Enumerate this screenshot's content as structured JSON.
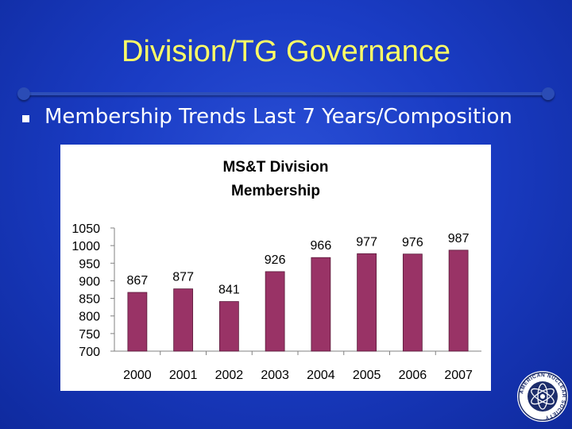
{
  "slide": {
    "title": "Division/TG Governance",
    "bullet": "Membership Trends Last 7 Years/Composition"
  },
  "colors": {
    "background": "#1a3cc4",
    "title": "#ffff66",
    "bar": "#993366",
    "bar_stroke": "#5a1a3a"
  },
  "logo": {
    "icon": "american-nuclear-society-seal",
    "text": "AMERICAN NUCLEAR SOCIETY"
  },
  "chart_data": {
    "type": "bar",
    "title_lines": [
      "MS&T Division",
      "Membership"
    ],
    "categories": [
      "2000",
      "2001",
      "2002",
      "2003",
      "2004",
      "2005",
      "2006",
      "2007"
    ],
    "values": [
      867,
      877,
      841,
      926,
      966,
      977,
      976,
      987
    ],
    "data_labels": [
      "867",
      "877",
      "841",
      "926",
      "966",
      "977",
      "976",
      "987"
    ],
    "ylim": [
      700,
      1050
    ],
    "y_ticks": [
      "700",
      "750",
      "800",
      "850",
      "900",
      "950",
      "1000",
      "1050"
    ],
    "grid": false,
    "legend": "none"
  }
}
